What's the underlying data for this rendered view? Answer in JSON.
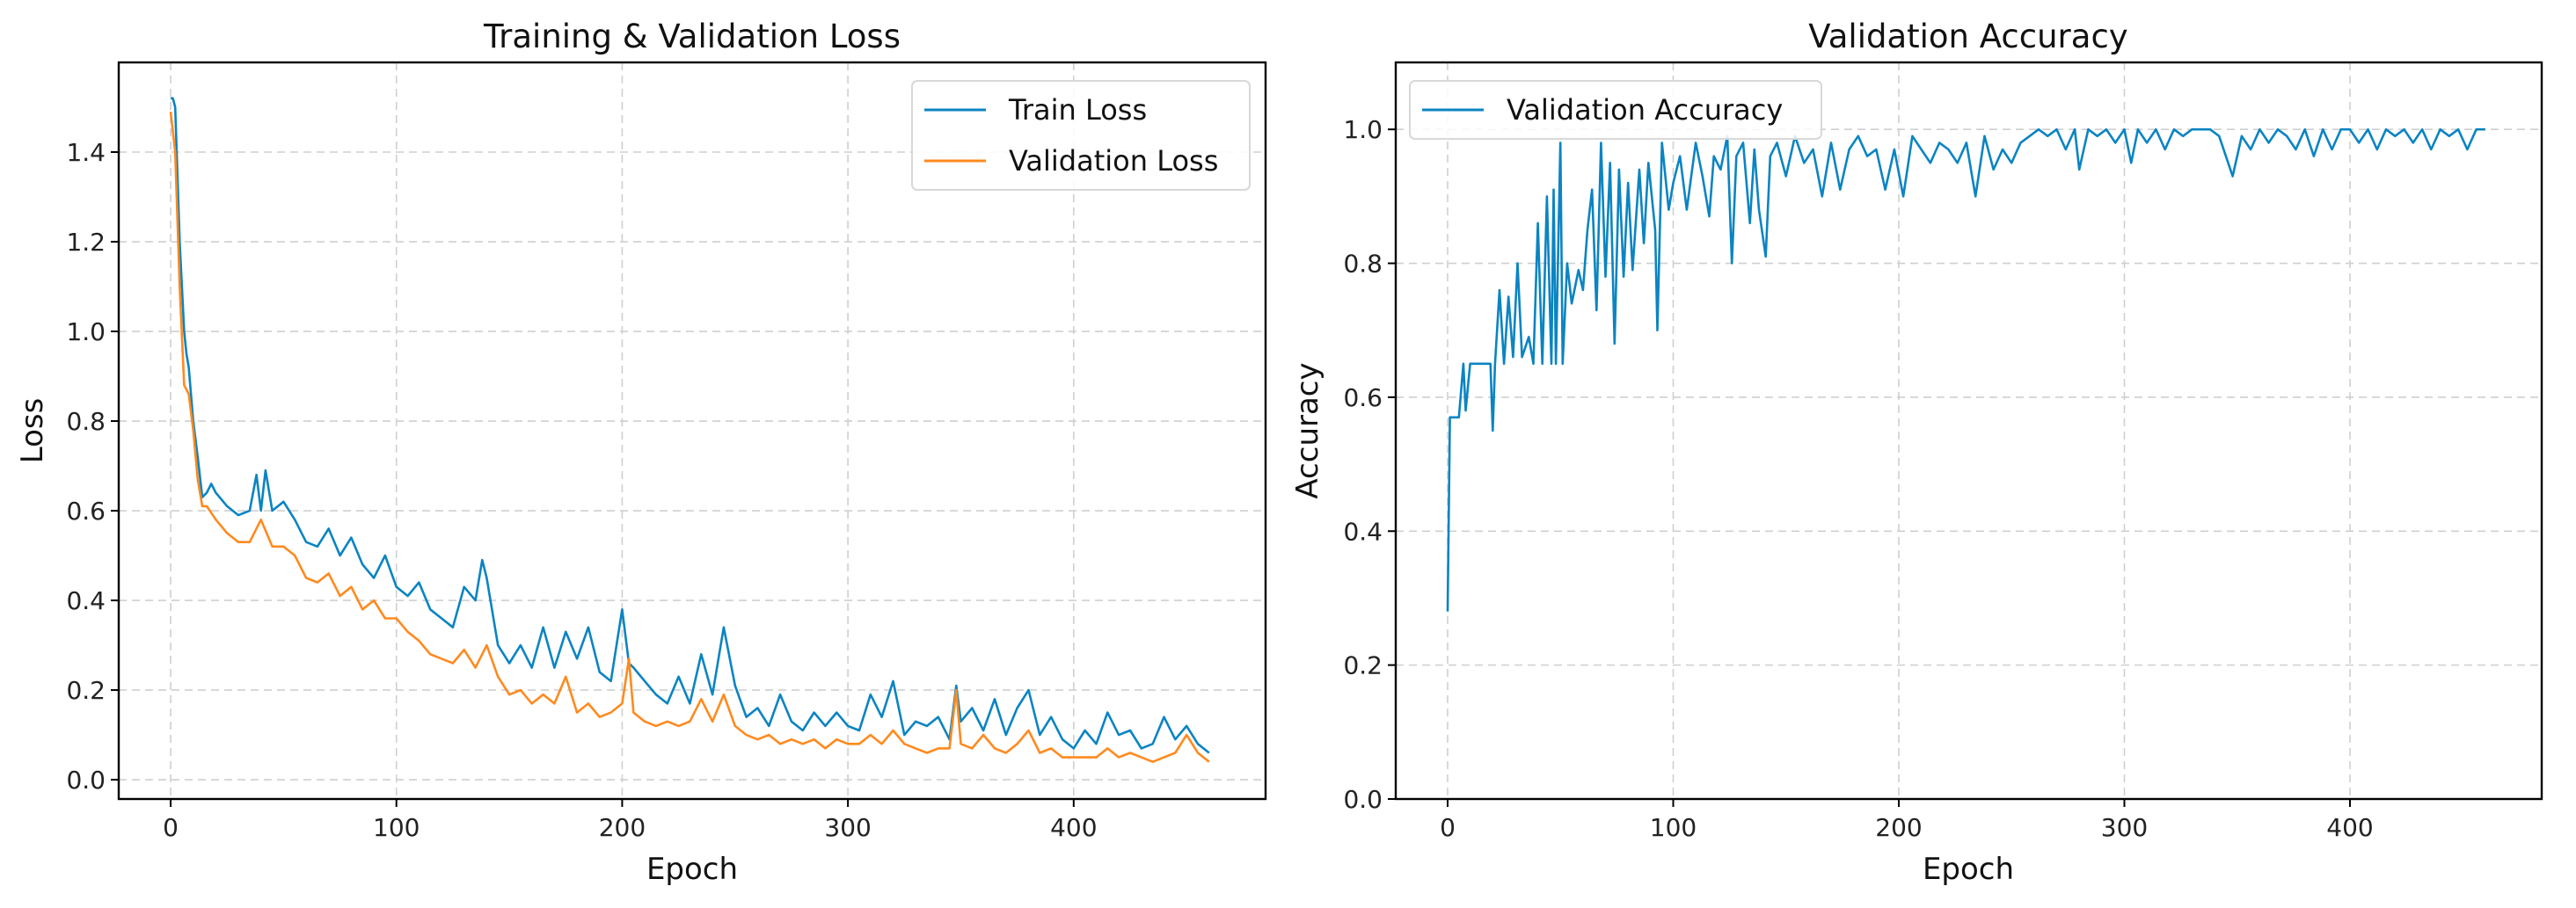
{
  "chart_data": [
    {
      "type": "line",
      "title": "Training & Validation Loss",
      "xlabel": "Epoch",
      "ylabel": "Loss",
      "xlim": [
        -23,
        485
      ],
      "ylim": [
        -0.043,
        1.6
      ],
      "xticks": [
        0,
        100,
        200,
        300,
        400
      ],
      "xtick_labels": [
        "0",
        "100",
        "200",
        "300",
        "400"
      ],
      "yticks": [
        0.0,
        0.2,
        0.4,
        0.6,
        0.8,
        1.0,
        1.2,
        1.4
      ],
      "ytick_labels": [
        "0.0",
        "0.2",
        "0.4",
        "0.6",
        "0.8",
        "1.0",
        "1.2",
        "1.4"
      ],
      "grid": true,
      "legend_position": "top-right",
      "series": [
        {
          "name": "Train Loss",
          "color": "#0b84c2",
          "x": [
            0,
            1,
            2,
            4,
            6,
            7,
            8,
            10,
            12,
            14,
            16,
            18,
            20,
            25,
            30,
            35,
            38,
            40,
            42,
            45,
            50,
            55,
            60,
            65,
            70,
            75,
            80,
            85,
            90,
            95,
            100,
            105,
            110,
            115,
            120,
            125,
            130,
            135,
            138,
            140,
            145,
            150,
            155,
            160,
            165,
            170,
            175,
            180,
            185,
            190,
            195,
            200,
            203,
            205,
            210,
            215,
            220,
            225,
            230,
            235,
            240,
            245,
            250,
            255,
            260,
            265,
            270,
            275,
            280,
            285,
            290,
            295,
            300,
            305,
            310,
            315,
            320,
            325,
            330,
            335,
            340,
            345,
            348,
            350,
            355,
            360,
            365,
            370,
            375,
            380,
            385,
            390,
            395,
            400,
            405,
            410,
            415,
            420,
            425,
            430,
            435,
            440,
            445,
            450,
            455,
            460
          ],
          "y": [
            1.52,
            1.52,
            1.5,
            1.2,
            1.0,
            0.95,
            0.92,
            0.8,
            0.72,
            0.63,
            0.64,
            0.66,
            0.64,
            0.61,
            0.59,
            0.6,
            0.68,
            0.6,
            0.69,
            0.6,
            0.62,
            0.58,
            0.53,
            0.52,
            0.56,
            0.5,
            0.54,
            0.48,
            0.45,
            0.5,
            0.43,
            0.41,
            0.44,
            0.38,
            0.36,
            0.34,
            0.43,
            0.4,
            0.49,
            0.45,
            0.3,
            0.26,
            0.3,
            0.25,
            0.34,
            0.25,
            0.33,
            0.27,
            0.34,
            0.24,
            0.22,
            0.38,
            0.26,
            0.25,
            0.22,
            0.19,
            0.17,
            0.23,
            0.17,
            0.28,
            0.19,
            0.34,
            0.21,
            0.14,
            0.16,
            0.12,
            0.19,
            0.13,
            0.11,
            0.15,
            0.12,
            0.15,
            0.12,
            0.11,
            0.19,
            0.14,
            0.22,
            0.1,
            0.13,
            0.12,
            0.14,
            0.09,
            0.21,
            0.13,
            0.16,
            0.11,
            0.18,
            0.1,
            0.16,
            0.2,
            0.1,
            0.14,
            0.09,
            0.07,
            0.11,
            0.08,
            0.15,
            0.1,
            0.11,
            0.07,
            0.08,
            0.14,
            0.09,
            0.12,
            0.08,
            0.06
          ]
        },
        {
          "name": "Validation Loss",
          "color": "#ff8a1f",
          "x": [
            0,
            2,
            4,
            6,
            8,
            10,
            12,
            14,
            16,
            20,
            25,
            30,
            35,
            40,
            45,
            50,
            55,
            60,
            65,
            70,
            75,
            80,
            85,
            90,
            95,
            100,
            105,
            110,
            115,
            120,
            125,
            130,
            135,
            140,
            145,
            150,
            155,
            160,
            165,
            170,
            175,
            180,
            185,
            190,
            195,
            200,
            203,
            205,
            210,
            215,
            220,
            225,
            230,
            235,
            240,
            245,
            250,
            255,
            260,
            265,
            270,
            275,
            280,
            285,
            290,
            295,
            300,
            305,
            310,
            315,
            320,
            325,
            330,
            335,
            340,
            345,
            348,
            350,
            355,
            360,
            365,
            370,
            375,
            380,
            385,
            390,
            395,
            400,
            405,
            410,
            415,
            420,
            425,
            430,
            435,
            440,
            445,
            450,
            455,
            460
          ],
          "y": [
            1.49,
            1.4,
            1.1,
            0.88,
            0.86,
            0.78,
            0.67,
            0.61,
            0.61,
            0.58,
            0.55,
            0.53,
            0.53,
            0.58,
            0.52,
            0.52,
            0.5,
            0.45,
            0.44,
            0.46,
            0.41,
            0.43,
            0.38,
            0.4,
            0.36,
            0.36,
            0.33,
            0.31,
            0.28,
            0.27,
            0.26,
            0.29,
            0.25,
            0.3,
            0.23,
            0.19,
            0.2,
            0.17,
            0.19,
            0.17,
            0.23,
            0.15,
            0.17,
            0.14,
            0.15,
            0.17,
            0.27,
            0.15,
            0.13,
            0.12,
            0.13,
            0.12,
            0.13,
            0.18,
            0.13,
            0.19,
            0.12,
            0.1,
            0.09,
            0.1,
            0.08,
            0.09,
            0.08,
            0.09,
            0.07,
            0.09,
            0.08,
            0.08,
            0.1,
            0.08,
            0.11,
            0.08,
            0.07,
            0.06,
            0.07,
            0.07,
            0.2,
            0.08,
            0.07,
            0.1,
            0.07,
            0.06,
            0.08,
            0.11,
            0.06,
            0.07,
            0.05,
            0.05,
            0.05,
            0.05,
            0.07,
            0.05,
            0.06,
            0.05,
            0.04,
            0.05,
            0.06,
            0.1,
            0.06,
            0.04
          ]
        }
      ]
    },
    {
      "type": "line",
      "title": "Validation Accuracy",
      "xlabel": "Epoch",
      "ylabel": "Accuracy",
      "xlim": [
        -23,
        485
      ],
      "ylim": [
        0.0,
        1.1
      ],
      "xticks": [
        0,
        100,
        200,
        300,
        400
      ],
      "xtick_labels": [
        "0",
        "100",
        "200",
        "300",
        "400"
      ],
      "yticks": [
        0.0,
        0.2,
        0.4,
        0.6,
        0.8,
        1.0
      ],
      "ytick_labels": [
        "0.0",
        "0.2",
        "0.4",
        "0.6",
        "0.8",
        "1.0"
      ],
      "grid": true,
      "legend_position": "top-left",
      "series": [
        {
          "name": "Validation Accuracy",
          "color": "#0b84c2",
          "x": [
            0,
            1,
            5,
            7,
            8,
            10,
            15,
            19,
            20,
            21,
            23,
            25,
            27,
            29,
            31,
            33,
            36,
            38,
            40,
            42,
            44,
            46,
            47,
            48,
            50,
            51,
            53,
            55,
            58,
            60,
            62,
            64,
            66,
            68,
            70,
            72,
            74,
            76,
            78,
            80,
            82,
            85,
            87,
            89,
            92,
            93,
            95,
            98,
            100,
            103,
            106,
            110,
            113,
            116,
            118,
            121,
            124,
            126,
            128,
            131,
            134,
            136,
            138,
            141,
            143,
            146,
            150,
            154,
            158,
            162,
            166,
            170,
            174,
            178,
            182,
            186,
            190,
            194,
            198,
            202,
            206,
            210,
            214,
            218,
            222,
            226,
            230,
            234,
            238,
            242,
            246,
            250,
            254,
            258,
            262,
            266,
            270,
            274,
            278,
            280,
            284,
            288,
            292,
            296,
            300,
            303,
            306,
            310,
            314,
            318,
            322,
            326,
            330,
            334,
            338,
            342,
            346,
            348,
            352,
            356,
            360,
            364,
            368,
            372,
            376,
            380,
            384,
            388,
            392,
            396,
            400,
            404,
            408,
            412,
            416,
            420,
            424,
            428,
            432,
            436,
            440,
            444,
            448,
            452,
            456,
            460
          ],
          "y": [
            0.28,
            0.57,
            0.57,
            0.65,
            0.58,
            0.65,
            0.65,
            0.65,
            0.55,
            0.65,
            0.76,
            0.65,
            0.75,
            0.66,
            0.8,
            0.66,
            0.69,
            0.65,
            0.86,
            0.65,
            0.9,
            0.65,
            0.91,
            0.65,
            0.98,
            0.65,
            0.8,
            0.74,
            0.79,
            0.76,
            0.85,
            0.91,
            0.73,
            0.98,
            0.78,
            0.95,
            0.68,
            0.94,
            0.78,
            0.92,
            0.79,
            0.94,
            0.83,
            0.95,
            0.85,
            0.7,
            0.98,
            0.88,
            0.92,
            0.96,
            0.88,
            0.98,
            0.93,
            0.87,
            0.96,
            0.94,
            0.99,
            0.8,
            0.96,
            0.98,
            0.86,
            0.97,
            0.88,
            0.81,
            0.96,
            0.98,
            0.93,
            0.99,
            0.95,
            0.97,
            0.9,
            0.98,
            0.91,
            0.97,
            0.99,
            0.96,
            0.97,
            0.91,
            0.97,
            0.9,
            0.99,
            0.97,
            0.95,
            0.98,
            0.97,
            0.95,
            0.98,
            0.9,
            0.99,
            0.94,
            0.97,
            0.95,
            0.98,
            0.99,
            1.0,
            0.99,
            1.0,
            0.97,
            1.0,
            0.94,
            1.0,
            0.99,
            1.0,
            0.98,
            1.0,
            0.95,
            1.0,
            0.98,
            1.0,
            0.97,
            1.0,
            0.99,
            1.0,
            1.0,
            1.0,
            0.99,
            0.95,
            0.93,
            0.99,
            0.97,
            1.0,
            0.98,
            1.0,
            0.99,
            0.97,
            1.0,
            0.96,
            1.0,
            0.97,
            1.0,
            1.0,
            0.98,
            1.0,
            0.97,
            1.0,
            0.99,
            1.0,
            0.98,
            1.0,
            0.97,
            1.0,
            0.99,
            1.0,
            0.97,
            1.0,
            1.0
          ]
        }
      ]
    }
  ]
}
